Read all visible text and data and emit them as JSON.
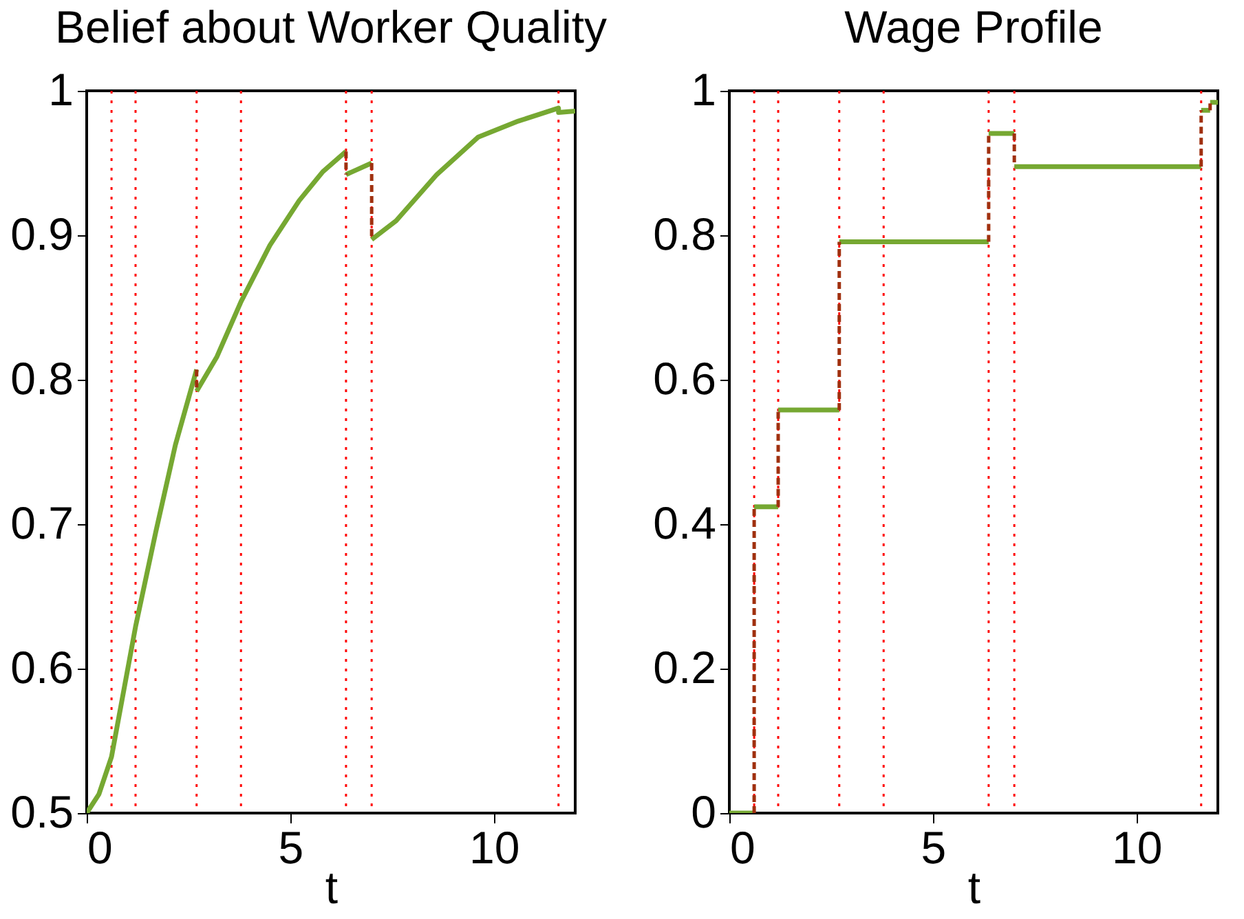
{
  "chart_data": [
    {
      "type": "line",
      "title": "Belief about Worker Quality",
      "xlabel": "t",
      "xlim": [
        0,
        12
      ],
      "xticks": [
        0,
        5,
        10
      ],
      "ylim": [
        0.5,
        1
      ],
      "yticks": [
        0.5,
        0.6,
        0.7,
        0.8,
        0.9,
        1
      ],
      "marker": "none",
      "ref_lines": [
        {
          "axis": "x",
          "value": 0.61,
          "color": "#ff0000",
          "line_style": "dotted"
        },
        {
          "axis": "x",
          "value": 1.2,
          "color": "#ff0000",
          "line_style": "dotted"
        },
        {
          "axis": "x",
          "value": 2.7,
          "color": "#ff0000",
          "line_style": "dotted"
        },
        {
          "axis": "x",
          "value": 3.79,
          "color": "#ff0000",
          "line_style": "dotted"
        },
        {
          "axis": "x",
          "value": 6.37,
          "color": "#ff0000",
          "line_style": "dotted"
        },
        {
          "axis": "x",
          "value": 7.0,
          "color": "#ff0000",
          "line_style": "dotted"
        },
        {
          "axis": "x",
          "value": 11.59,
          "color": "#ff0000",
          "line_style": "dotted"
        }
      ],
      "series": [
        {
          "color": "#76a832",
          "line_style": "solid",
          "x": [
            0,
            0.3,
            0.61,
            1.2,
            1.7,
            2.18,
            2.7
          ],
          "values": [
            0.5,
            0.513,
            0.539,
            0.629,
            0.695,
            0.755,
            0.807
          ]
        },
        {
          "color": "#76a832",
          "line_style": "solid",
          "x": [
            2.7,
            3.2,
            3.79,
            4.5,
            5.22,
            5.8,
            6.37
          ],
          "values": [
            0.792,
            0.816,
            0.854,
            0.893,
            0.924,
            0.944,
            0.958
          ]
        },
        {
          "color": "#76a832",
          "line_style": "solid",
          "x": [
            6.37,
            7.0
          ],
          "values": [
            0.942,
            0.95
          ]
        },
        {
          "color": "#76a832",
          "line_style": "solid",
          "x": [
            7.0,
            7.6,
            8.6,
            9.62,
            10.6,
            11.59,
            11.59,
            12
          ],
          "values": [
            0.897,
            0.91,
            0.942,
            0.968,
            0.979,
            0.988,
            0.985,
            0.986
          ]
        },
        {
          "color": "#a0300f",
          "line_style": "dashed",
          "x": [
            2.7,
            2.7
          ],
          "values": [
            0.807,
            0.792
          ]
        },
        {
          "color": "#a0300f",
          "line_style": "dashed",
          "x": [
            6.37,
            6.37
          ],
          "values": [
            0.958,
            0.942
          ]
        },
        {
          "color": "#a0300f",
          "line_style": "dashed",
          "x": [
            7.0,
            7.0
          ],
          "values": [
            0.95,
            0.897
          ]
        }
      ]
    },
    {
      "type": "line",
      "title": "Wage Profile",
      "xlabel": "t",
      "xlim": [
        0,
        12
      ],
      "xticks": [
        0,
        5,
        10
      ],
      "ylim": [
        0,
        1
      ],
      "yticks": [
        0,
        0.2,
        0.4,
        0.6,
        0.8,
        1
      ],
      "marker": "none",
      "ref_lines": [
        {
          "axis": "x",
          "value": 0.61,
          "color": "#ff0000",
          "line_style": "dotted"
        },
        {
          "axis": "x",
          "value": 1.2,
          "color": "#ff0000",
          "line_style": "dotted"
        },
        {
          "axis": "x",
          "value": 2.7,
          "color": "#ff0000",
          "line_style": "dotted"
        },
        {
          "axis": "x",
          "value": 3.79,
          "color": "#ff0000",
          "line_style": "dotted"
        },
        {
          "axis": "x",
          "value": 6.37,
          "color": "#ff0000",
          "line_style": "dotted"
        },
        {
          "axis": "x",
          "value": 7.0,
          "color": "#ff0000",
          "line_style": "dotted"
        },
        {
          "axis": "x",
          "value": 11.59,
          "color": "#ff0000",
          "line_style": "dotted"
        }
      ],
      "series": [
        {
          "color": "#76a832",
          "line_style": "solid",
          "x": [
            0,
            0.61
          ],
          "values": [
            0,
            0
          ]
        },
        {
          "color": "#76a832",
          "line_style": "solid",
          "x": [
            0.61,
            1.2
          ],
          "values": [
            0.424,
            0.424
          ]
        },
        {
          "color": "#76a832",
          "line_style": "solid",
          "x": [
            1.2,
            2.7
          ],
          "values": [
            0.558,
            0.558
          ]
        },
        {
          "color": "#76a832",
          "line_style": "solid",
          "x": [
            2.7,
            6.37
          ],
          "values": [
            0.791,
            0.791
          ]
        },
        {
          "color": "#76a832",
          "line_style": "solid",
          "x": [
            6.37,
            7.0
          ],
          "values": [
            0.941,
            0.941
          ]
        },
        {
          "color": "#76a832",
          "line_style": "solid",
          "x": [
            7.0,
            11.59
          ],
          "values": [
            0.895,
            0.895
          ]
        },
        {
          "color": "#76a832",
          "line_style": "solid",
          "x": [
            11.59,
            11.81
          ],
          "values": [
            0.973,
            0.973
          ]
        },
        {
          "color": "#76a832",
          "line_style": "solid",
          "x": [
            11.81,
            12
          ],
          "values": [
            0.984,
            0.984
          ]
        },
        {
          "color": "#a0300f",
          "line_style": "dashed",
          "x": [
            0.61,
            0.61
          ],
          "values": [
            0,
            0.424
          ]
        },
        {
          "color": "#a0300f",
          "line_style": "dashed",
          "x": [
            1.2,
            1.2
          ],
          "values": [
            0.424,
            0.558
          ]
        },
        {
          "color": "#a0300f",
          "line_style": "dashed",
          "x": [
            2.7,
            2.7
          ],
          "values": [
            0.558,
            0.791
          ]
        },
        {
          "color": "#a0300f",
          "line_style": "dashed",
          "x": [
            6.37,
            6.37
          ],
          "values": [
            0.791,
            0.941
          ]
        },
        {
          "color": "#a0300f",
          "line_style": "dashed",
          "x": [
            7.0,
            7.0
          ],
          "values": [
            0.941,
            0.895
          ]
        },
        {
          "color": "#a0300f",
          "line_style": "dashed",
          "x": [
            11.59,
            11.59
          ],
          "values": [
            0.895,
            0.973
          ]
        },
        {
          "color": "#a0300f",
          "line_style": "dashed",
          "x": [
            11.81,
            11.81
          ],
          "values": [
            0.973,
            0.984
          ]
        }
      ]
    }
  ]
}
